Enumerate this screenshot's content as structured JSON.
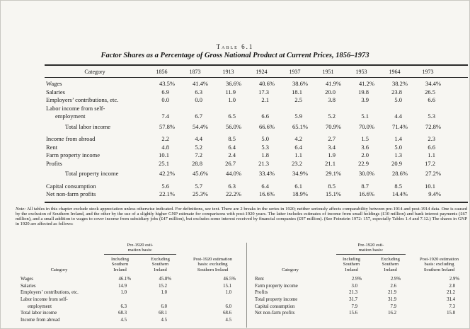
{
  "heading": {
    "table_label": "Table 6.1",
    "title": "Factor Shares as a Percentage of Gross National Product at Current Prices, 1856–1973"
  },
  "main_table": {
    "category_header": "Category",
    "years": [
      "1856",
      "1873",
      "1913",
      "1924",
      "1937",
      "1951",
      "1953",
      "1964",
      "1973"
    ],
    "rows": [
      {
        "label": "Wages",
        "values": [
          "43.5%",
          "41.4%",
          "36.6%",
          "40.6%",
          "38.6%",
          "41.9%",
          "41.2%",
          "38.2%",
          "34.4%"
        ]
      },
      {
        "label": "Salaries",
        "values": [
          "6.9",
          "6.3",
          "11.9",
          "17.3",
          "18.1",
          "20.0",
          "19.8",
          "23.8",
          "26.5"
        ]
      },
      {
        "label": "Employers’ contributions, etc.",
        "values": [
          "0.0",
          "0.0",
          "1.0",
          "2.1",
          "2.5",
          "3.8",
          "3.9",
          "5.0",
          "6.6"
        ]
      },
      {
        "label": "Labor income from self-",
        "values": []
      },
      {
        "label": "employment",
        "indent": 1,
        "values": [
          "7.4",
          "6.7",
          "6.5",
          "6.6",
          "5.9",
          "5.2",
          "5.1",
          "4.4",
          "5.3"
        ]
      },
      {
        "label": "Total labor income",
        "indent": 2,
        "gap": "sm",
        "values": [
          "57.8%",
          "54.4%",
          "56.0%",
          "66.6%",
          "65.1%",
          "70.9%",
          "70.0%",
          "71.4%",
          "72.8%"
        ]
      },
      {
        "label": "Income from abroad",
        "gap": "md",
        "values": [
          "2.2",
          "4.4",
          "8.5",
          "5.0",
          "4.2",
          "2.7",
          "1.5",
          "1.4",
          "2.3"
        ]
      },
      {
        "label": "Rent",
        "values": [
          "4.8",
          "5.2",
          "6.4",
          "5.3",
          "6.4",
          "3.4",
          "3.6",
          "5.0",
          "6.6"
        ]
      },
      {
        "label": "Farm property income",
        "values": [
          "10.1",
          "7.2",
          "2.4",
          "1.8",
          "1.1",
          "1.9",
          "2.0",
          "1.3",
          "1.1"
        ]
      },
      {
        "label": "Profits",
        "values": [
          "25.1",
          "28.8",
          "26.7",
          "21.3",
          "23.2",
          "21.1",
          "22.9",
          "20.9",
          "17.2"
        ]
      },
      {
        "label": "Total property income",
        "indent": 2,
        "gap": "sm",
        "values": [
          "42.2%",
          "45.6%",
          "44.0%",
          "33.4%",
          "34.9%",
          "29.1%",
          "30.0%",
          "28.6%",
          "27.2%"
        ]
      },
      {
        "label": "Capital consumption",
        "gap": "md",
        "values": [
          "5.6",
          "5.7",
          "6.3",
          "6.4",
          "6.1",
          "8.5",
          "8.7",
          "8.5",
          "10.1"
        ]
      },
      {
        "label": "Net non-farm profits",
        "values": [
          "22.1%",
          "25.3%",
          "22.2%",
          "16.6%",
          "18.9%",
          "15.1%",
          "16.6%",
          "14.4%",
          "9.4%"
        ]
      }
    ]
  },
  "note": {
    "label": "Note:",
    "text": "All tables in this chapter exclude stock appreciation unless otherwise indicated. For definitions, see text. There are 2 breaks in the series in 1920; neither seriously affects comparability between pre-1914 and post-1914 data. One is caused by the exclusion of Southern Ireland, and the other by the use of a slightly higher GNP estimate for comparisons with post-1920 years. The latter includes estimates of income from small holdings (£10 million) and bank interest payments (£67 million), and a small addition to wages to cover income from subsidiary jobs (£47 million), but excludes some interest received by financial companies (£97 million). (See Feinstein 1972: 157, especially Tables 1.4 and 7.12.) The shares in GNP in 1920 are affected as follows:"
  },
  "sub_left": {
    "header": {
      "pre": "Pre-1920 esti-\nmation basis:",
      "category": "Category",
      "col1": "Including\nSouthern\nIreland",
      "col2": "Excluding\nSouthern\nIreland",
      "col3": "Post-1920 estimation\nbasis: excluding\nSouthern Ireland"
    },
    "rows": [
      {
        "label": "Wages",
        "values": [
          "46.1%",
          "45.8%",
          "46.5%"
        ]
      },
      {
        "label": "Salaries",
        "values": [
          "14.9",
          "15.2",
          "15.1"
        ]
      },
      {
        "label": "Employers’ contributions, etc.",
        "values": [
          "1.0",
          "1.0",
          "1.0"
        ]
      },
      {
        "label": "Labor income from self-",
        "values": []
      },
      {
        "label": "employment",
        "indent": 1,
        "values": [
          "6.3",
          "6.0",
          "6.0"
        ]
      },
      {
        "label": "Total labor income",
        "values": [
          "68.3",
          "68.1",
          "68.6"
        ]
      },
      {
        "label": "Income from abroad",
        "values": [
          "4.5",
          "4.5",
          "4.5"
        ]
      }
    ]
  },
  "sub_right": {
    "header": {
      "pre": "Pre-1920 esti-\nmation basis:",
      "category": "Category",
      "col1": "Including\nSouthern\nIreland",
      "col2": "Excluding\nSouthern\nIreland",
      "col3": "Post-1920 estimation\nbasis: excluding\nSouthern Ireland"
    },
    "rows": [
      {
        "label": "Rent",
        "values": [
          "2.9%",
          "2.9%",
          "2.9%"
        ]
      },
      {
        "label": "Farm property income",
        "values": [
          "3.0",
          "2.6",
          "2.8"
        ]
      },
      {
        "label": "Profits",
        "values": [
          "21.3",
          "21.9",
          "21.2"
        ]
      },
      {
        "label": "Total property income",
        "values": [
          "31.7",
          "31.9",
          "31.4"
        ]
      },
      {
        "label": "Capital consumption",
        "values": [
          "7.9",
          "7.9",
          "7.3"
        ]
      },
      {
        "label": "Net non-farm profits",
        "values": [
          "15.6",
          "16.2",
          "15.8"
        ]
      }
    ]
  }
}
